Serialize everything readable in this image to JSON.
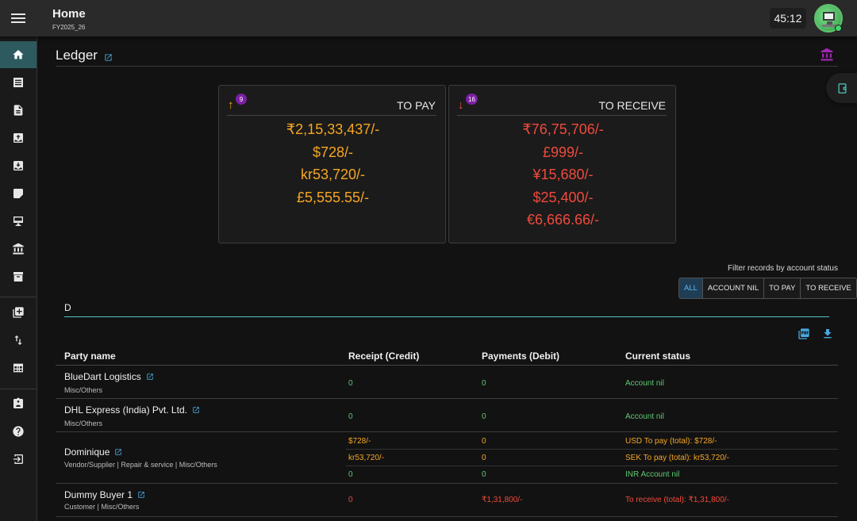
{
  "topbar": {
    "title": "Home",
    "subtitle": "FY2025_26",
    "timer": "45:12"
  },
  "sidebar": {
    "items": [
      {
        "icon": "home-icon",
        "active": true
      },
      {
        "icon": "list-icon"
      },
      {
        "icon": "document-icon"
      },
      {
        "icon": "inbox-out-icon"
      },
      {
        "icon": "inbox-in-icon"
      },
      {
        "icon": "label-icon"
      },
      {
        "icon": "desktop-icon"
      },
      {
        "icon": "bank-icon"
      },
      {
        "icon": "archive-icon"
      },
      {
        "icon": "add-box-icon"
      },
      {
        "icon": "swap-vertical-icon"
      },
      {
        "icon": "table-icon"
      },
      {
        "icon": "contact-card-icon"
      },
      {
        "icon": "help-icon"
      },
      {
        "icon": "logout-icon"
      }
    ]
  },
  "page": {
    "title": "Ledger"
  },
  "cards": {
    "to_pay": {
      "label": "TO PAY",
      "count": "9",
      "values": [
        "₹2,15,33,437/-",
        "$728/-",
        "kr53,720/-",
        "£5,555.55/-"
      ]
    },
    "to_receive": {
      "label": "TO RECEIVE",
      "count": "16",
      "values": [
        "₹76,75,706/-",
        "£999/-",
        "¥15,680/-",
        "$25,400/-",
        "€6,666.66/-"
      ]
    }
  },
  "filter": {
    "label": "Filter records by account status",
    "options": [
      "ALL",
      "ACCOUNT NIL",
      "TO PAY",
      "TO RECEIVE"
    ],
    "selected": "ALL"
  },
  "search": {
    "value": "D"
  },
  "table": {
    "headers": [
      "Party name",
      "Receipt (Credit)",
      "Payments (Debit)",
      "Current status"
    ],
    "rows": [
      {
        "name": "BlueDart Logistics",
        "category": "Misc/Others",
        "lines": [
          {
            "credit": "0",
            "debit": "0",
            "status": "Account nil",
            "tone": "green"
          }
        ]
      },
      {
        "name": "DHL Express (India) Pvt. Ltd.",
        "category": "Misc/Others",
        "lines": [
          {
            "credit": "0",
            "debit": "0",
            "status": "Account nil",
            "tone": "green"
          }
        ]
      },
      {
        "name": "Dominique",
        "category": "Vendor/Supplier | Repair & service | Misc/Others",
        "lines": [
          {
            "credit": "$728/-",
            "debit": "0",
            "status": "USD To pay (total): $728/-",
            "tone": "orange"
          },
          {
            "credit": "kr53,720/-",
            "debit": "0",
            "status": "SEK To pay (total): kr53,720/-",
            "tone": "orange"
          },
          {
            "credit": "0",
            "debit": "0",
            "status": "INR Account nil",
            "tone": "green"
          }
        ]
      },
      {
        "name": "Dummy Buyer 1",
        "category": "Customer | Misc/Others",
        "lines": [
          {
            "credit": "0",
            "debit": "₹1,31,800/-",
            "status": "To receive (total): ₹1,31,800/-",
            "tone": "red"
          }
        ]
      }
    ]
  },
  "colors": {
    "accent": "#4ec6c0",
    "pay": "#f5a623",
    "receive": "#ef4a3c",
    "nil": "#5dc971",
    "badge": "#7b1fa2",
    "active_nav": "#2d5a5e"
  }
}
